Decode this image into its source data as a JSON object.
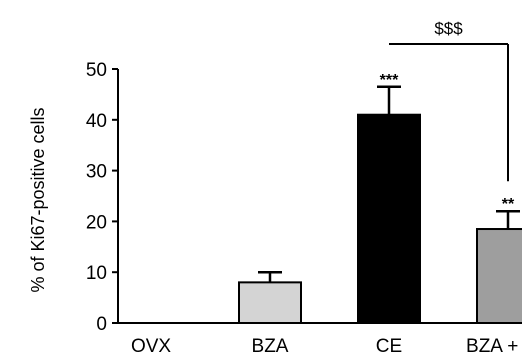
{
  "chart_data": {
    "type": "bar",
    "title": "",
    "xlabel": "",
    "ylabel": "% of Ki67-positive cells",
    "ylim": [
      0,
      50
    ],
    "yticks": [
      0,
      10,
      20,
      30,
      40,
      50
    ],
    "grid": false,
    "legend": "none",
    "categories": [
      "OVX",
      "BZA",
      "CE",
      "BZA + CE"
    ],
    "values": [
      0,
      8,
      41,
      18.5
    ],
    "errors": [
      0,
      2,
      5.5,
      3.5
    ],
    "bar_colors": [
      "#ffffff",
      "#d4d4d4",
      "#000000",
      "#9e9e9e"
    ],
    "significance": [
      "",
      "",
      "***",
      "**"
    ],
    "bracket": {
      "from": "CE",
      "to": "BZA + CE",
      "label": "$$$"
    }
  }
}
